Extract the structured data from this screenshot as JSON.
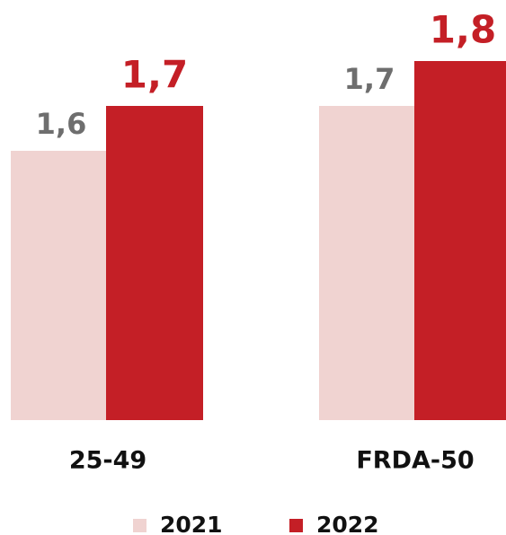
{
  "chart_data": {
    "type": "bar",
    "categories": [
      "25-49",
      "FRDA-50"
    ],
    "series": [
      {
        "name": "2021",
        "color": "#f0d3d1",
        "label_color": "#6e6e6e",
        "values": [
          1.6,
          1.7
        ],
        "value_labels": [
          "1,6",
          "1,7"
        ]
      },
      {
        "name": "2022",
        "color": "#c41f26",
        "label_color": "#c41f26",
        "values": [
          1.7,
          1.8
        ],
        "value_labels": [
          "1,7",
          "1,8"
        ]
      }
    ],
    "ylim": [
      1.0,
      1.8
    ],
    "legend": "bottom"
  }
}
